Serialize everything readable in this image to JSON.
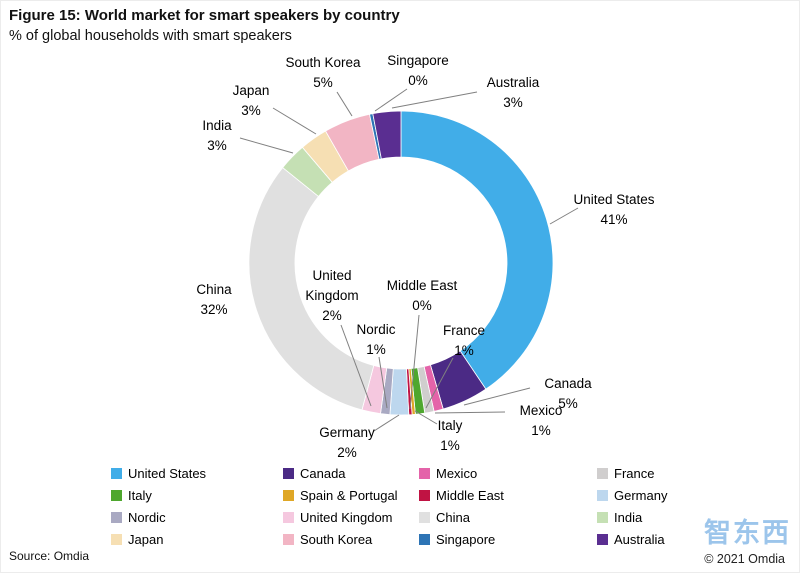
{
  "figure": {
    "title": "Figure 15: World market for smart speakers by country",
    "subtitle": "% of global households with smart speakers"
  },
  "footer": {
    "source": "Source: Omdia",
    "copyright": "© 2021 Omdia",
    "watermark": "智东西"
  },
  "chart_data": {
    "type": "pie",
    "subtype": "donut",
    "title": "World market for smart speakers by country",
    "unit": "%",
    "legend_position": "bottom",
    "series": [
      {
        "name": "United States",
        "value": 41,
        "color": "#41ade8"
      },
      {
        "name": "Canada",
        "value": 5,
        "color": "#4b2a85"
      },
      {
        "name": "Mexico",
        "value": 1,
        "color": "#e463a9"
      },
      {
        "name": "France",
        "value": 1,
        "color": "#d0cece"
      },
      {
        "name": "Italy",
        "value": 1,
        "color": "#4ea72e"
      },
      {
        "name": "Spain & Portugal",
        "value": 0,
        "color": "#dfa726"
      },
      {
        "name": "Middle East",
        "value": 0,
        "color": "#c01343"
      },
      {
        "name": "Germany",
        "value": 2,
        "color": "#bdd7ee"
      },
      {
        "name": "Nordic",
        "value": 1,
        "color": "#a9a9c2"
      },
      {
        "name": "United Kingdom",
        "value": 2,
        "color": "#f5c8df"
      },
      {
        "name": "China",
        "value": 32,
        "color": "#e0e0e0"
      },
      {
        "name": "India",
        "value": 3,
        "color": "#c5e0b4"
      },
      {
        "name": "Japan",
        "value": 3,
        "color": "#f6dfb3"
      },
      {
        "name": "South Korea",
        "value": 5,
        "color": "#f2b5c4"
      },
      {
        "name": "Singapore",
        "value": 0,
        "color": "#2d74b5"
      },
      {
        "name": "Australia",
        "value": 3,
        "color": "#5a2e91"
      }
    ],
    "legend_order": [
      "United States",
      "Canada",
      "Mexico",
      "France",
      "Italy",
      "Spain & Portugal",
      "Middle East",
      "Germany",
      "Nordic",
      "United Kingdom",
      "China",
      "India",
      "Japan",
      "South Korea",
      "Singapore",
      "Australia"
    ]
  }
}
